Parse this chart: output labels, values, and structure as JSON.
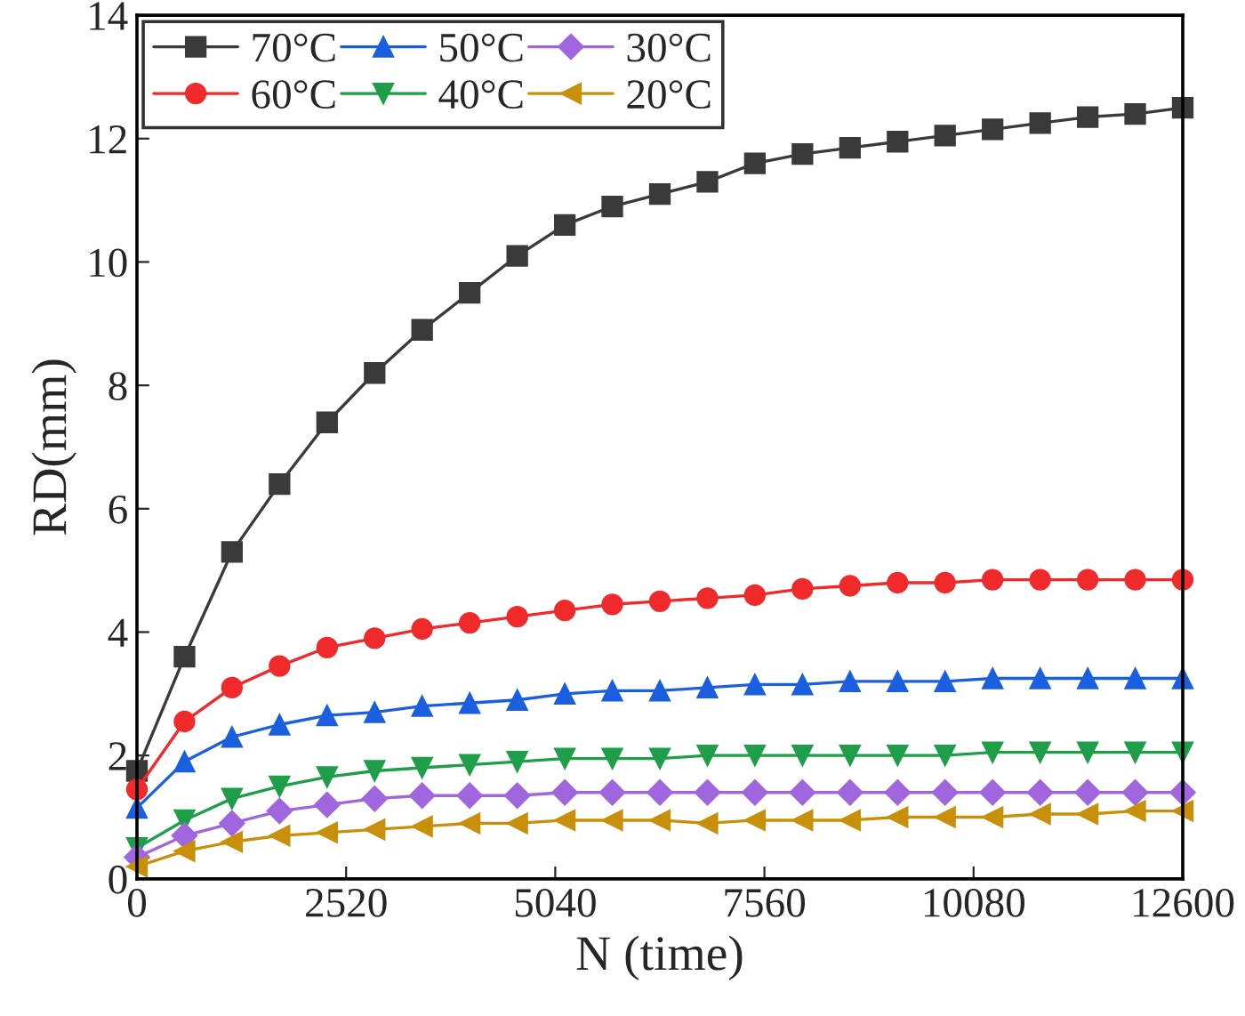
{
  "chart_data": {
    "type": "line",
    "xlabel": "N (time)",
    "ylabel": "RD(mm)",
    "x": [
      0,
      573,
      1145,
      1718,
      2291,
      2864,
      3436,
      4009,
      4582,
      5155,
      5727,
      6300,
      6873,
      7445,
      8018,
      8591,
      9164,
      9736,
      10309,
      10882,
      11455,
      12027,
      12600
    ],
    "series": [
      {
        "name": "70°C",
        "color": "#3a3a3a",
        "marker": "square",
        "values": [
          1.75,
          3.6,
          5.3,
          6.4,
          7.4,
          8.2,
          8.9,
          9.5,
          10.1,
          10.6,
          10.9,
          11.1,
          11.3,
          11.6,
          11.75,
          11.85,
          11.95,
          12.05,
          12.15,
          12.25,
          12.35,
          12.4,
          12.5
        ]
      },
      {
        "name": "60°C",
        "color": "#f02a2a",
        "marker": "circle",
        "values": [
          1.45,
          2.55,
          3.1,
          3.45,
          3.75,
          3.9,
          4.05,
          4.15,
          4.25,
          4.35,
          4.45,
          4.5,
          4.55,
          4.6,
          4.7,
          4.75,
          4.8,
          4.8,
          4.85,
          4.85,
          4.85,
          4.85,
          4.85
        ]
      },
      {
        "name": "50°C",
        "color": "#1a5fe0",
        "marker": "triangle",
        "values": [
          1.15,
          1.9,
          2.3,
          2.5,
          2.65,
          2.7,
          2.8,
          2.85,
          2.9,
          3.0,
          3.05,
          3.05,
          3.1,
          3.15,
          3.15,
          3.2,
          3.2,
          3.2,
          3.25,
          3.25,
          3.25,
          3.25,
          3.25
        ]
      },
      {
        "name": "40°C",
        "color": "#1f9e4a",
        "marker": "triangle_down",
        "values": [
          0.5,
          0.95,
          1.3,
          1.5,
          1.65,
          1.75,
          1.8,
          1.85,
          1.9,
          1.95,
          1.95,
          1.95,
          2.0,
          2.0,
          2.0,
          2.0,
          2.0,
          2.0,
          2.05,
          2.05,
          2.05,
          2.05,
          2.05
        ]
      },
      {
        "name": "30°C",
        "color": "#a066dd",
        "marker": "diamond",
        "values": [
          0.35,
          0.7,
          0.9,
          1.1,
          1.2,
          1.3,
          1.35,
          1.35,
          1.35,
          1.4,
          1.4,
          1.4,
          1.4,
          1.4,
          1.4,
          1.4,
          1.4,
          1.4,
          1.4,
          1.4,
          1.4,
          1.4,
          1.4
        ]
      },
      {
        "name": "20°C",
        "color": "#c8900a",
        "marker": "triangle_left",
        "values": [
          0.2,
          0.45,
          0.6,
          0.7,
          0.75,
          0.8,
          0.85,
          0.9,
          0.9,
          0.95,
          0.95,
          0.95,
          0.9,
          0.95,
          0.95,
          0.95,
          1.0,
          1.0,
          1.0,
          1.05,
          1.05,
          1.1,
          1.1
        ]
      }
    ],
    "xlim": [
      0,
      12600
    ],
    "xticks": [
      0,
      2520,
      5040,
      7560,
      10080,
      12600
    ],
    "ylim": [
      0,
      14
    ],
    "yticks": [
      0,
      2,
      4,
      6,
      8,
      10,
      12,
      14
    ],
    "grid": false,
    "legend": "top",
    "line_style": "solid"
  }
}
